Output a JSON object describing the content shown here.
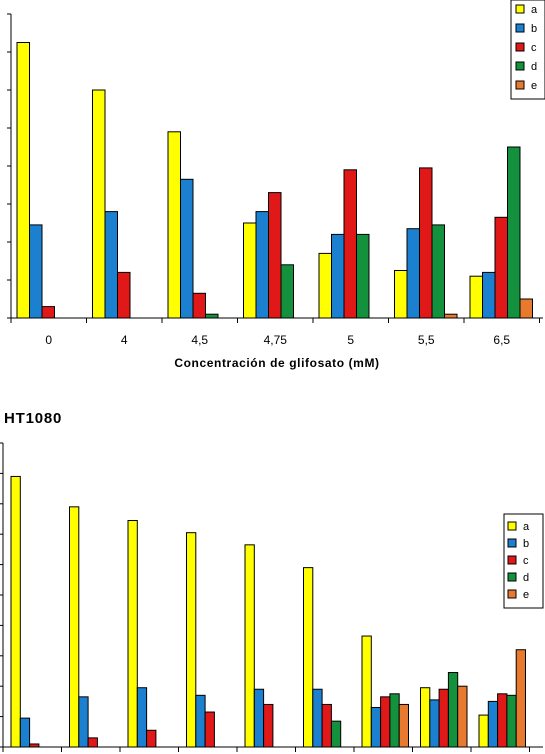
{
  "colors": {
    "a": "#ffff00",
    "b": "#1b80d0",
    "c": "#e01818",
    "d": "#13913c",
    "e": "#e87a30"
  },
  "chart_data": [
    {
      "type": "bar",
      "title": "",
      "xlabel": "Concentración de glifosato (mM)",
      "ylabel": "",
      "categories": [
        "0",
        "4",
        "4,5",
        "4,75",
        "5",
        "5,5",
        "6,5"
      ],
      "ylim": [
        0,
        8
      ],
      "series": [
        {
          "name": "a",
          "values": [
            7.25,
            6.0,
            4.9,
            2.5,
            1.7,
            1.25,
            1.1
          ]
        },
        {
          "name": "b",
          "values": [
            2.45,
            2.8,
            3.65,
            2.8,
            2.2,
            2.35,
            1.2
          ]
        },
        {
          "name": "c",
          "values": [
            0.3,
            1.2,
            0.65,
            3.3,
            3.9,
            3.95,
            2.65
          ]
        },
        {
          "name": "d",
          "values": [
            0,
            0,
            0.1,
            1.4,
            2.2,
            2.45,
            4.5
          ]
        },
        {
          "name": "e",
          "values": [
            0,
            0,
            0,
            0,
            0,
            0.1,
            0.5
          ]
        }
      ],
      "grid": false,
      "legend": "top-right"
    },
    {
      "type": "bar",
      "title": "HT1080",
      "xlabel": "",
      "ylabel": "",
      "categories": [
        "",
        "",
        "",
        "",
        "",
        "",
        "",
        "",
        ""
      ],
      "ylim": [
        0,
        10
      ],
      "series": [
        {
          "name": "a",
          "values": [
            8.9,
            7.9,
            7.45,
            7.05,
            6.65,
            5.9,
            3.65,
            1.95,
            1.05
          ]
        },
        {
          "name": "b",
          "values": [
            0.95,
            1.65,
            1.95,
            1.7,
            1.9,
            1.9,
            1.3,
            1.55,
            1.5
          ]
        },
        {
          "name": "c",
          "values": [
            0.1,
            0.3,
            0.55,
            1.15,
            1.4,
            1.4,
            1.65,
            1.9,
            1.75
          ]
        },
        {
          "name": "d",
          "values": [
            0,
            0,
            0,
            0,
            0,
            0.85,
            1.75,
            2.45,
            1.7
          ]
        },
        {
          "name": "e",
          "values": [
            0,
            0,
            0,
            0,
            0,
            0,
            1.4,
            2.0,
            3.2
          ]
        }
      ],
      "grid": false,
      "legend": "right"
    }
  ]
}
